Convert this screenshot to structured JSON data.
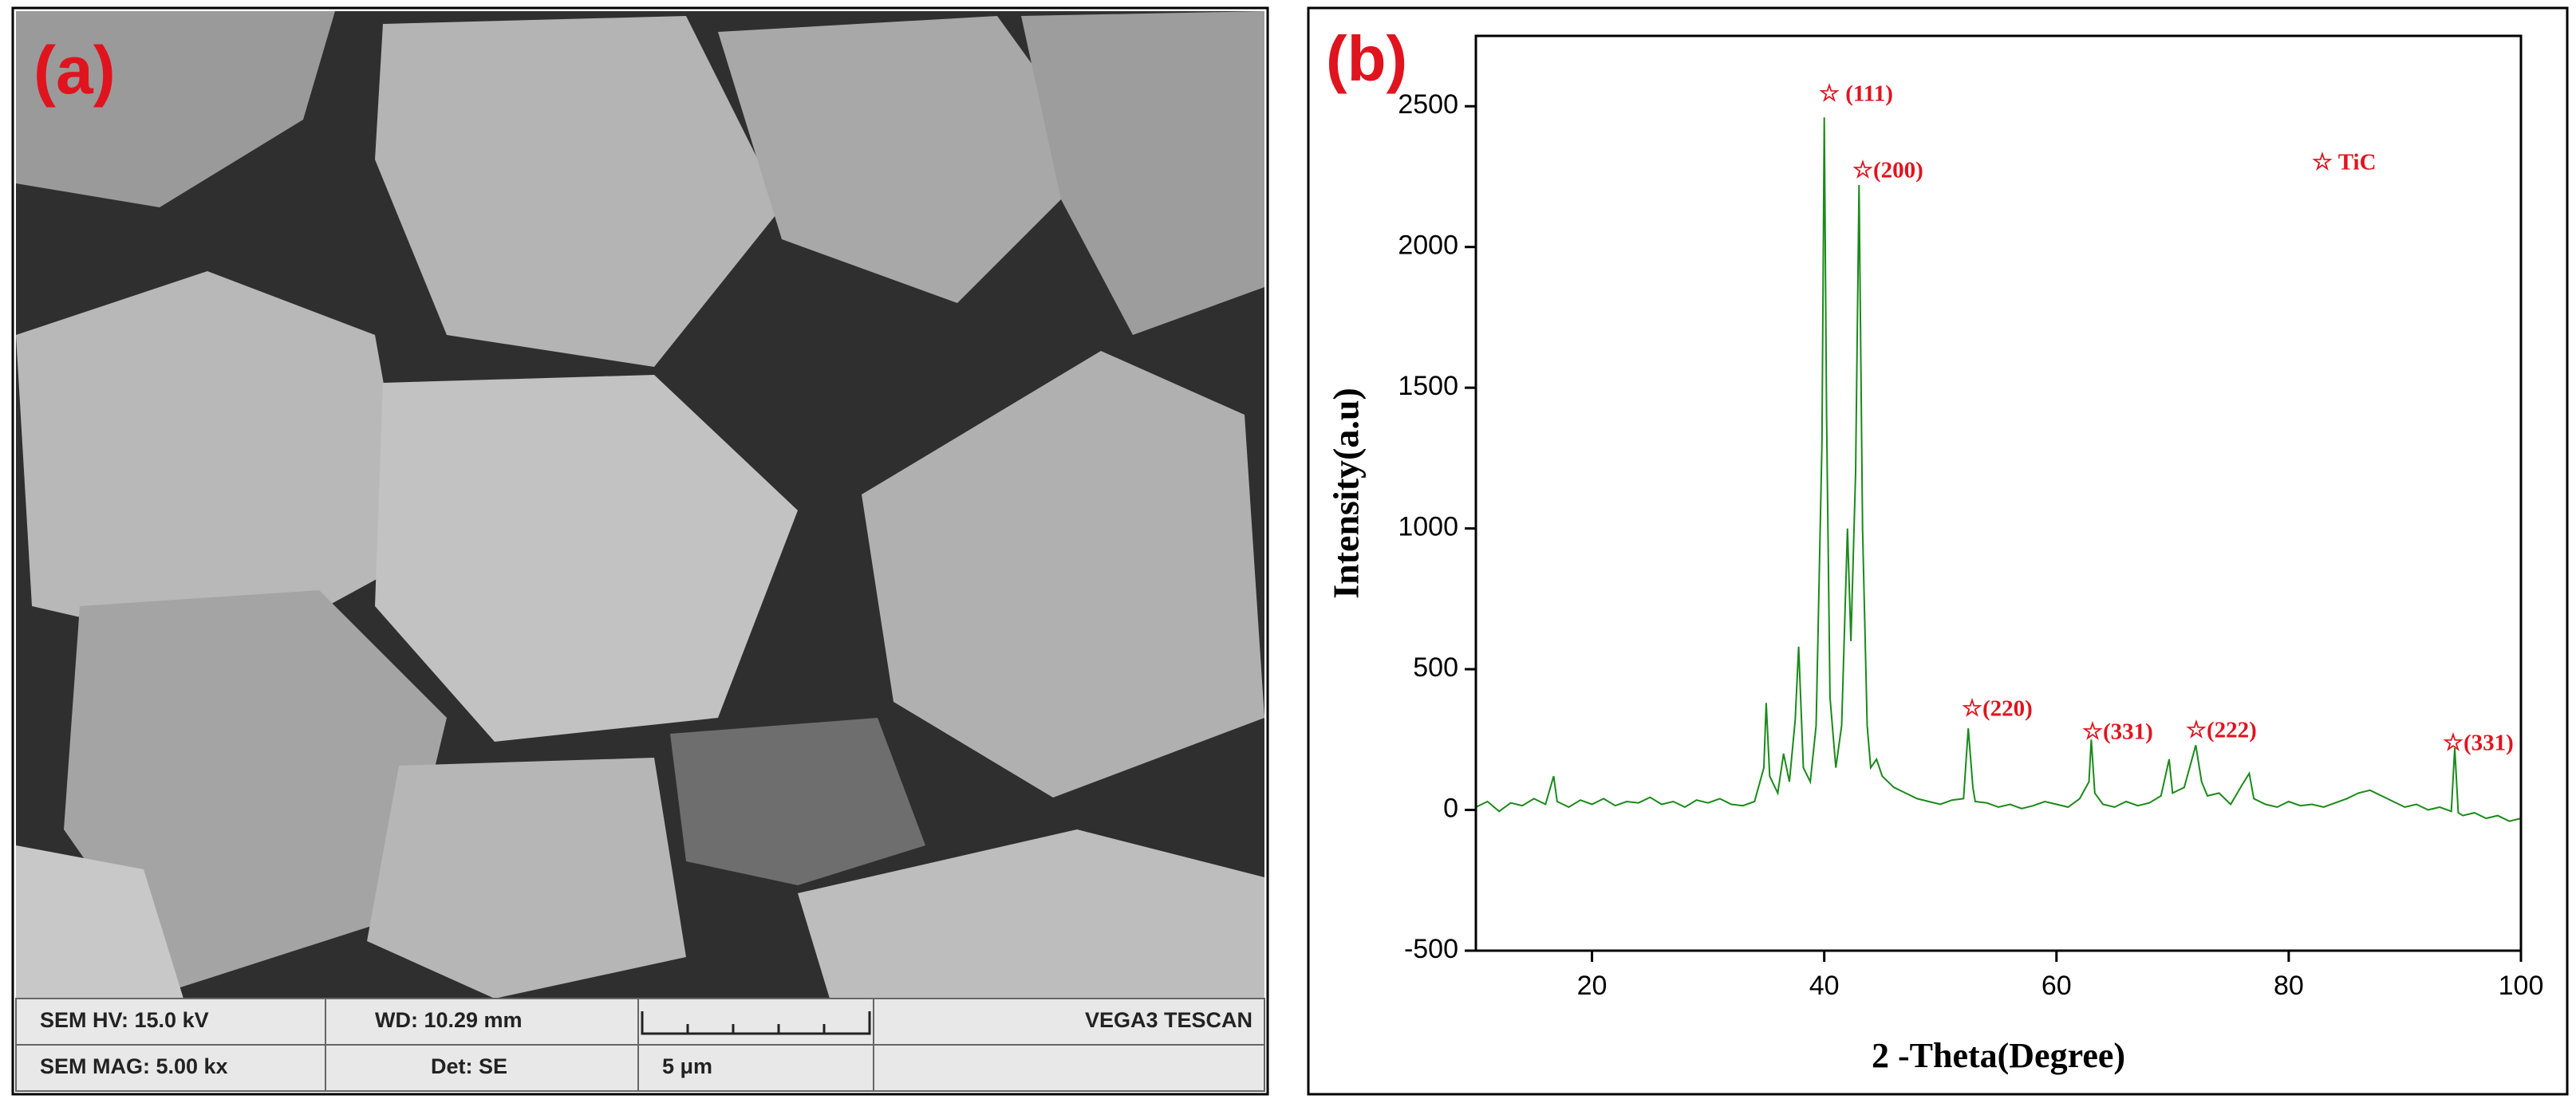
{
  "panel_a": {
    "label": "(a)",
    "info": [
      "SEM HV: 15.0 kV",
      "WD: 10.29 mm",
      "VEGA3 TESCAN",
      "SEM MAG: 5.00 kx",
      "Det: SE",
      "5 μm"
    ]
  },
  "chart_data": {
    "type": "line",
    "label": "(b)",
    "xlabel": "2 -Theta(Degree)",
    "ylabel": "Intensity(a.u)",
    "legend_text": "☆ TiC",
    "annotations": [
      "☆ (111)",
      "☆(200)",
      "☆(220)",
      "☆(331)",
      "☆(222)",
      "☆(331)"
    ],
    "color": "#1a8a1a",
    "xlim": [
      10,
      100
    ],
    "ylim": [
      -500,
      2750
    ],
    "xticks": [
      20,
      40,
      60,
      80,
      100
    ],
    "yticks": [
      -500,
      0,
      500,
      1000,
      1500,
      2000,
      2500
    ],
    "x": [
      10,
      11,
      12,
      13,
      14,
      15,
      16,
      16.7,
      17,
      18,
      19,
      20,
      21,
      22,
      23,
      24,
      25,
      26,
      27,
      28,
      29,
      30,
      31,
      32,
      33,
      34,
      34.8,
      35,
      35.3,
      36,
      36.5,
      37,
      37.5,
      37.8,
      38.2,
      38.8,
      39.3,
      39.8,
      40,
      40.2,
      40.5,
      41,
      41.5,
      42,
      42.3,
      42.7,
      43,
      43.3,
      43.7,
      44,
      44.5,
      45,
      46,
      47,
      48,
      49,
      50,
      51,
      52,
      52.4,
      52.8,
      53,
      54,
      55,
      56,
      57,
      58,
      59,
      60,
      61,
      62,
      62.8,
      63,
      63.3,
      64,
      65,
      66,
      67,
      68,
      69,
      69.7,
      70,
      71,
      72,
      72.5,
      73,
      74,
      75,
      76,
      76.6,
      77,
      78,
      79,
      80,
      81,
      82,
      83,
      84,
      85,
      86,
      87,
      88,
      89,
      90,
      91,
      92,
      93,
      94,
      94.3,
      94.6,
      95,
      96,
      97,
      98,
      99,
      100
    ],
    "values": [
      10,
      30,
      -5,
      25,
      15,
      40,
      20,
      120,
      30,
      10,
      35,
      20,
      40,
      15,
      30,
      25,
      45,
      20,
      30,
      10,
      35,
      25,
      40,
      20,
      15,
      30,
      150,
      380,
      120,
      60,
      200,
      100,
      320,
      580,
      150,
      100,
      300,
      1300,
      2460,
      1400,
      400,
      150,
      300,
      1000,
      600,
      1200,
      2220,
      1000,
      300,
      150,
      180,
      120,
      80,
      60,
      40,
      30,
      20,
      35,
      40,
      290,
      80,
      30,
      25,
      10,
      20,
      5,
      15,
      30,
      20,
      10,
      40,
      100,
      250,
      60,
      20,
      10,
      30,
      15,
      25,
      50,
      180,
      60,
      80,
      230,
      100,
      50,
      60,
      20,
      90,
      130,
      40,
      20,
      10,
      30,
      15,
      20,
      10,
      25,
      40,
      60,
      70,
      50,
      30,
      10,
      20,
      0,
      10,
      -5,
      220,
      -10,
      -20,
      -10,
      -30,
      -20,
      -40,
      -30
    ]
  }
}
